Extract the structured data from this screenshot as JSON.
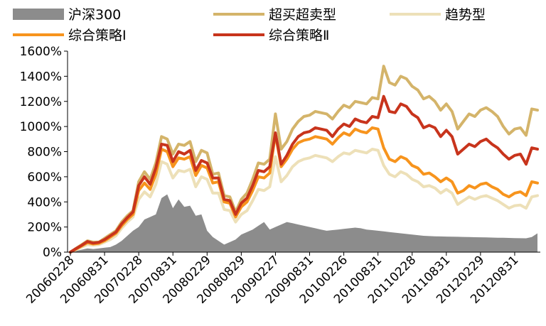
{
  "chart_data": {
    "type": "line",
    "title": "",
    "xlabel": "",
    "ylabel": "",
    "ylim": [
      0,
      1600
    ],
    "y_unit": "%",
    "y_ticks": [
      0,
      200,
      400,
      600,
      800,
      1000,
      1200,
      1400,
      1600
    ],
    "y_tick_labels": [
      "0%",
      "200%",
      "400%",
      "600%",
      "800%",
      "1000%",
      "1200%",
      "1400%",
      "1600%"
    ],
    "x_tick_labels": [
      "20060228",
      "20060831",
      "20070228",
      "20070831",
      "20080229",
      "20080829",
      "20090227",
      "20090831",
      "20100226",
      "20100831",
      "20110228",
      "20110831",
      "20120229",
      "20120831"
    ],
    "x_tick_index": [
      0,
      6,
      12,
      18,
      24,
      30,
      36,
      42,
      48,
      54,
      60,
      66,
      72,
      78
    ],
    "legend": {
      "placement": "top",
      "columns": 3
    },
    "series": [
      {
        "name": "沪深300",
        "style": "area",
        "color": "#8c8c8c",
        "values": [
          0,
          10,
          20,
          30,
          25,
          30,
          35,
          40,
          60,
          90,
          130,
          170,
          200,
          260,
          280,
          300,
          430,
          460,
          350,
          420,
          360,
          370,
          290,
          300,
          170,
          120,
          90,
          60,
          80,
          100,
          140,
          160,
          180,
          210,
          240,
          180,
          200,
          220,
          240,
          230,
          220,
          210,
          200,
          190,
          180,
          170,
          175,
          180,
          185,
          190,
          195,
          190,
          180,
          175,
          170,
          165,
          160,
          155,
          150,
          145,
          140,
          135,
          130,
          128,
          126,
          125,
          124,
          123,
          122,
          121,
          120,
          119,
          118,
          117,
          116,
          115,
          114,
          113,
          112,
          111,
          110,
          120,
          150
        ]
      },
      {
        "name": "超买超卖型",
        "style": "line",
        "color": "#d4b46a",
        "values": [
          0,
          30,
          60,
          90,
          80,
          80,
          110,
          140,
          170,
          240,
          290,
          330,
          560,
          640,
          580,
          710,
          920,
          900,
          780,
          860,
          850,
          880,
          720,
          810,
          790,
          620,
          630,
          450,
          440,
          320,
          420,
          470,
          580,
          710,
          700,
          740,
          1100,
          820,
          880,
          980,
          1040,
          1080,
          1090,
          1120,
          1110,
          1100,
          1060,
          1120,
          1170,
          1150,
          1200,
          1190,
          1180,
          1230,
          1220,
          1480,
          1350,
          1330,
          1400,
          1380,
          1320,
          1290,
          1220,
          1240,
          1200,
          1130,
          1180,
          1120,
          980,
          1040,
          1100,
          1080,
          1130,
          1150,
          1120,
          1080,
          1000,
          940,
          980,
          990,
          930,
          1140,
          1130
        ]
      },
      {
        "name": "趋势型",
        "style": "line",
        "color": "#ede0b8",
        "values": [
          0,
          20,
          40,
          60,
          55,
          60,
          80,
          100,
          130,
          190,
          240,
          280,
          420,
          480,
          440,
          540,
          720,
          700,
          590,
          650,
          640,
          660,
          520,
          600,
          580,
          470,
          470,
          340,
          330,
          240,
          300,
          330,
          410,
          500,
          490,
          520,
          760,
          560,
          610,
          680,
          720,
          740,
          750,
          770,
          760,
          750,
          720,
          760,
          790,
          780,
          810,
          800,
          790,
          820,
          810,
          690,
          620,
          600,
          640,
          620,
          580,
          560,
          520,
          530,
          510,
          470,
          500,
          470,
          380,
          410,
          440,
          420,
          440,
          450,
          430,
          410,
          380,
          350,
          370,
          375,
          350,
          440,
          450
        ]
      },
      {
        "name": "综合策略Ⅰ",
        "style": "line",
        "color": "#f7941d",
        "values": [
          0,
          25,
          50,
          75,
          65,
          70,
          90,
          120,
          150,
          210,
          260,
          300,
          490,
          550,
          500,
          620,
          820,
          800,
          680,
          750,
          740,
          760,
          610,
          690,
          670,
          550,
          560,
          400,
          390,
          280,
          360,
          400,
          490,
          600,
          590,
          630,
          940,
          680,
          740,
          820,
          870,
          890,
          900,
          920,
          910,
          900,
          860,
          910,
          950,
          930,
          980,
          960,
          950,
          990,
          980,
          830,
          740,
          720,
          760,
          740,
          690,
          670,
          620,
          630,
          600,
          560,
          590,
          560,
          470,
          490,
          530,
          510,
          540,
          550,
          520,
          500,
          460,
          440,
          470,
          480,
          450,
          560,
          550
        ]
      },
      {
        "name": "综合策略Ⅱ",
        "style": "line",
        "color": "#c8341c",
        "values": [
          0,
          28,
          55,
          85,
          72,
          78,
          100,
          130,
          160,
          225,
          275,
          320,
          530,
          600,
          540,
          670,
          860,
          850,
          720,
          800,
          780,
          810,
          650,
          730,
          710,
          590,
          590,
          420,
          410,
          300,
          390,
          430,
          530,
          650,
          640,
          680,
          950,
          700,
          770,
          860,
          920,
          950,
          960,
          990,
          980,
          970,
          920,
          980,
          1020,
          1000,
          1060,
          1040,
          1030,
          1080,
          1070,
          1240,
          1120,
          1110,
          1180,
          1160,
          1100,
          1070,
          990,
          1010,
          990,
          920,
          970,
          920,
          780,
          820,
          860,
          840,
          880,
          900,
          860,
          830,
          780,
          740,
          770,
          780,
          700,
          830,
          820
        ]
      }
    ]
  }
}
